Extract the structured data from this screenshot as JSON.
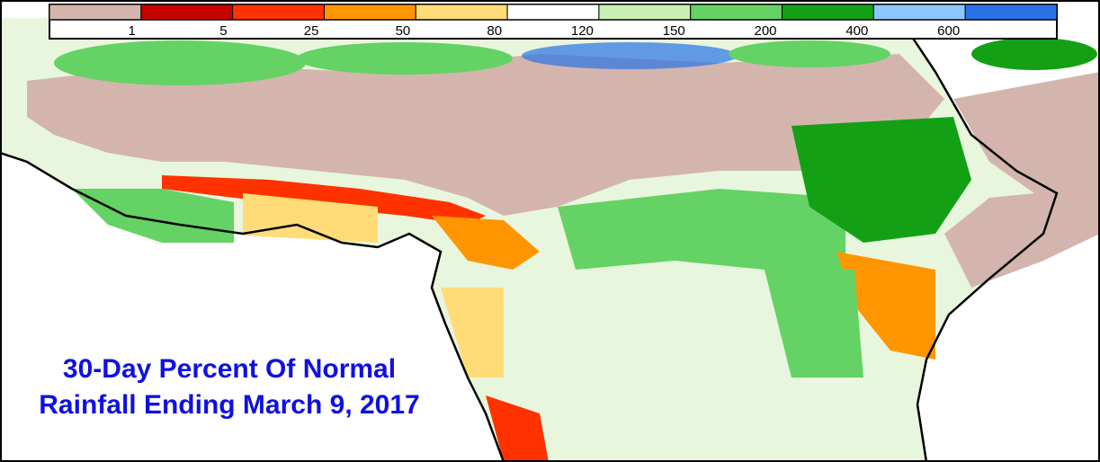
{
  "legend": {
    "colors": [
      "#d4b5ae",
      "#c80000",
      "#ff3200",
      "#ff9600",
      "#ffdc78",
      "#ffffff",
      "#c8f0b4",
      "#64d264",
      "#14a014",
      "#8cc8ff",
      "#2873e6"
    ],
    "labels": [
      "1",
      "5",
      "25",
      "50",
      "80",
      "120",
      "150",
      "200",
      "400",
      "600"
    ]
  },
  "title": {
    "line1": "30-Day Percent Of Normal",
    "line2": "Rainfall Ending March 9, 2017"
  }
}
